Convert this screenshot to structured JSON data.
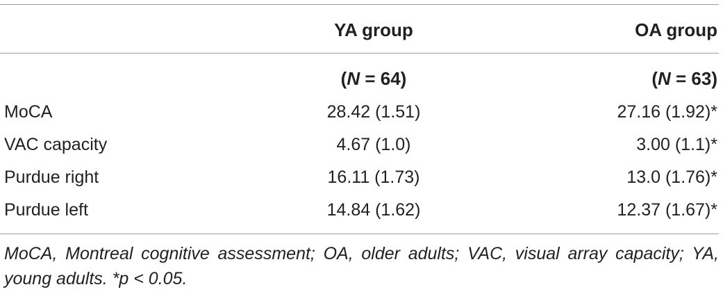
{
  "table": {
    "header": {
      "group_ya": "YA group",
      "group_oa": "OA group",
      "n_prefix": "(",
      "n_var": "N",
      "n_ya_rest": " = 64)",
      "n_oa_rest": " = 63)"
    },
    "rows": [
      {
        "label": "MoCA",
        "ya": "28.42 (1.51)",
        "oa": "27.16 (1.92)*"
      },
      {
        "label": "VAC capacity",
        "ya": "4.67 (1.0)",
        "oa": "3.00 (1.1)*"
      },
      {
        "label": "Purdue right",
        "ya": "16.11 (1.73)",
        "oa": "13.0 (1.76)*"
      },
      {
        "label": "Purdue left",
        "ya": "14.84 (1.62)",
        "oa": "12.37 (1.67)*"
      }
    ]
  },
  "footnote": "MoCA, Montreal cognitive assessment; OA, older adults; VAC, visual array capacity; YA, young adults. *p < 0.05."
}
